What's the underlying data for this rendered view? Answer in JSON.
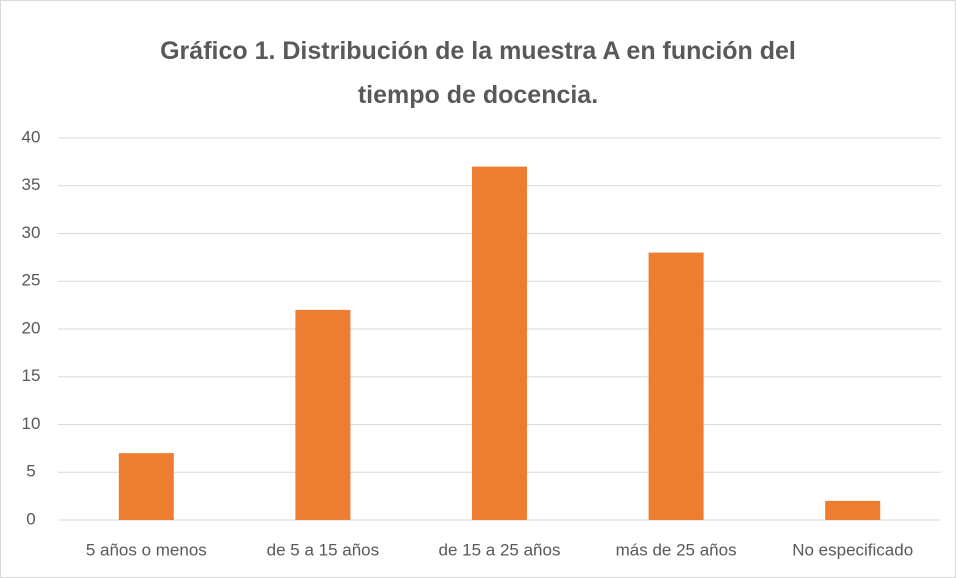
{
  "chart_data": {
    "type": "bar",
    "title": "Gráfico 1. Distribución de la muestra A en función del tiempo de docencia.",
    "categories": [
      "5 años o menos",
      "de 5 a 15 años",
      "de 15 a 25 años",
      "más de 25 años",
      "No especificado"
    ],
    "values": [
      7,
      22,
      37,
      28,
      2
    ],
    "color": "#ed7d31",
    "ylim": [
      0,
      40
    ],
    "yticks": [
      0,
      5,
      10,
      15,
      20,
      25,
      30,
      35,
      40
    ],
    "grid": true
  }
}
